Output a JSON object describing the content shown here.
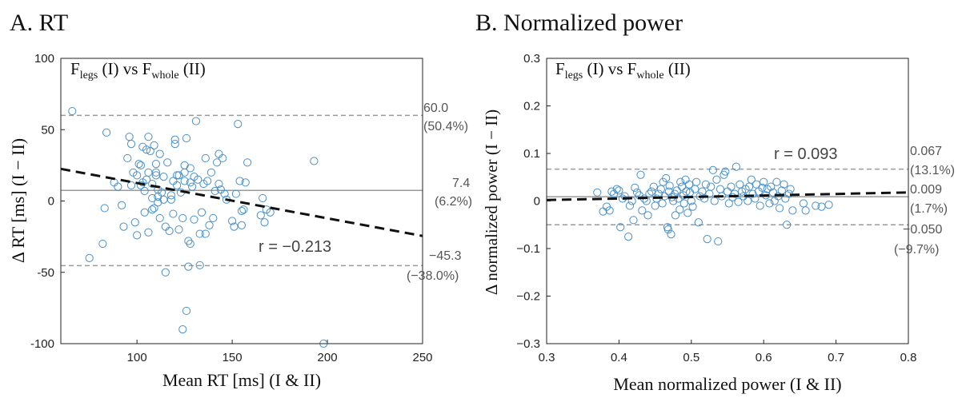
{
  "chart_data": [
    {
      "type": "scatter",
      "panel_title": "A. RT",
      "inset_title": {
        "f1": "F",
        "s1": "legs",
        "m1": " (I) vs F",
        "s2": "whole",
        "m2": " (II)"
      },
      "xlabel": "Mean RT [ms] (I & II)",
      "ylabel": "Δ RT [ms] (I − II)",
      "xlim": [
        60,
        250
      ],
      "ylim": [
        -100,
        100
      ],
      "xticks": [
        100,
        150,
        200,
        250
      ],
      "yticks": [
        -100,
        -50,
        0,
        50,
        100
      ],
      "correlation_label": "r = −0.213",
      "mean_line": {
        "value": 7.4,
        "label": "7.4",
        "pct": "(6.2%)"
      },
      "upper_loa": {
        "value": 60.0,
        "label": "60.0",
        "pct": "(50.4%)"
      },
      "lower_loa": {
        "value": -45.3,
        "label": "−45.3",
        "pct": "(−38.0%)"
      },
      "regression": {
        "x": [
          60,
          250
        ],
        "y": [
          22.5,
          -24.5
        ]
      },
      "grid": false,
      "marker_color": "#4a90c8",
      "points": [
        [
          66,
          63
        ],
        [
          75,
          -40
        ],
        [
          83,
          -5
        ],
        [
          82,
          -30
        ],
        [
          84,
          48
        ],
        [
          88,
          13
        ],
        [
          90,
          10
        ],
        [
          92,
          -3
        ],
        [
          93,
          -18
        ],
        [
          95,
          30
        ],
        [
          96,
          45
        ],
        [
          97,
          40
        ],
        [
          97,
          11
        ],
        [
          98,
          20
        ],
        [
          99,
          -15
        ],
        [
          100,
          18
        ],
        [
          101,
          26
        ],
        [
          100,
          -24
        ],
        [
          102,
          25
        ],
        [
          102,
          11
        ],
        [
          103,
          13
        ],
        [
          104,
          7
        ],
        [
          103,
          38
        ],
        [
          104,
          -8
        ],
        [
          105,
          15
        ],
        [
          105,
          36
        ],
        [
          106,
          45
        ],
        [
          106,
          20
        ],
        [
          106,
          -22
        ],
        [
          107,
          35
        ],
        [
          108,
          2
        ],
        [
          108,
          -6
        ],
        [
          108,
          12
        ],
        [
          109,
          39
        ],
        [
          109,
          -5
        ],
        [
          110,
          26
        ],
        [
          110,
          20
        ],
        [
          110,
          18
        ],
        [
          111,
          8
        ],
        [
          111,
          -1
        ],
        [
          111,
          3
        ],
        [
          112,
          33
        ],
        [
          112,
          -12
        ],
        [
          113,
          6
        ],
        [
          114,
          1
        ],
        [
          114,
          17
        ],
        [
          115,
          -18
        ],
        [
          115,
          -50
        ],
        [
          116,
          27
        ],
        [
          117,
          -21
        ],
        [
          118,
          1
        ],
        [
          118,
          4
        ],
        [
          119,
          14
        ],
        [
          119,
          -9
        ],
        [
          120,
          40
        ],
        [
          120,
          43
        ],
        [
          121,
          11
        ],
        [
          121,
          18
        ],
        [
          122,
          -20
        ],
        [
          122,
          18
        ],
        [
          123,
          6
        ],
        [
          124,
          -12
        ],
        [
          124,
          -90
        ],
        [
          125,
          25
        ],
        [
          125,
          20
        ],
        [
          125,
          14
        ],
        [
          126,
          -77
        ],
        [
          126,
          44
        ],
        [
          127,
          -46
        ],
        [
          127,
          -28
        ],
        [
          128,
          -30
        ],
        [
          128,
          23
        ],
        [
          128,
          13
        ],
        [
          129,
          10
        ],
        [
          130,
          17
        ],
        [
          130,
          -13
        ],
        [
          131,
          56
        ],
        [
          132,
          15
        ],
        [
          133,
          -23
        ],
        [
          133,
          -45
        ],
        [
          134,
          -8
        ],
        [
          135,
          12
        ],
        [
          136,
          30
        ],
        [
          136,
          -23
        ],
        [
          137,
          14
        ],
        [
          138,
          -17
        ],
        [
          139,
          20
        ],
        [
          140,
          -12
        ],
        [
          141,
          7
        ],
        [
          142,
          27
        ],
        [
          143,
          12
        ],
        [
          143,
          33
        ],
        [
          144,
          8
        ],
        [
          145,
          30
        ],
        [
          146,
          5
        ],
        [
          147,
          1
        ],
        [
          150,
          -14
        ],
        [
          151,
          -18
        ],
        [
          152,
          5
        ],
        [
          153,
          54
        ],
        [
          154,
          14
        ],
        [
          155,
          -17
        ],
        [
          155,
          -7
        ],
        [
          156,
          -6
        ],
        [
          157,
          13
        ],
        [
          158,
          27
        ],
        [
          165,
          -10
        ],
        [
          166,
          2
        ],
        [
          167,
          -15
        ],
        [
          168,
          -6
        ],
        [
          170,
          -8
        ],
        [
          193,
          28
        ],
        [
          198,
          -100
        ]
      ]
    },
    {
      "type": "scatter",
      "panel_title": "B. Normalized power",
      "inset_title": {
        "f1": "F",
        "s1": "legs",
        "m1": " (I) vs F",
        "s2": "whole",
        "m2": " (II)"
      },
      "xlabel": "Mean normalized power (I & II)",
      "ylabel": "Δ normalized power (I − II)",
      "xlim": [
        0.3,
        0.8
      ],
      "ylim": [
        -0.3,
        0.3
      ],
      "xticks": [
        "0.3",
        "0.4",
        "0.5",
        "0.6",
        "0.7",
        "0.8"
      ],
      "yticks": [
        "−0.3",
        "−0.2",
        "−0.1",
        "0",
        "0.1",
        "0.2",
        "0.3"
      ],
      "xtick_values": [
        0.3,
        0.4,
        0.5,
        0.6,
        0.7,
        0.8
      ],
      "ytick_values": [
        -0.3,
        -0.2,
        -0.1,
        0,
        0.1,
        0.2,
        0.3
      ],
      "correlation_label": "r = 0.093",
      "mean_line": {
        "value": 0.009,
        "label": "0.009",
        "pct": "(1.7%)"
      },
      "upper_loa": {
        "value": 0.067,
        "label": "0.067",
        "pct": "(13.1%)"
      },
      "lower_loa": {
        "value": -0.05,
        "label": "−0.050",
        "pct": "(−9.7%)"
      },
      "regression": {
        "x": [
          0.3,
          0.8
        ],
        "y": [
          0.002,
          0.018
        ]
      },
      "grid": false,
      "marker_color": "#4a90c8",
      "points": [
        [
          0.37,
          0.018
        ],
        [
          0.378,
          -0.022
        ],
        [
          0.383,
          -0.012
        ],
        [
          0.387,
          -0.02
        ],
        [
          0.39,
          0.02
        ],
        [
          0.393,
          0.015
        ],
        [
          0.397,
          0.025
        ],
        [
          0.4,
          0.022
        ],
        [
          0.402,
          -0.055
        ],
        [
          0.405,
          0.005
        ],
        [
          0.408,
          0.01
        ],
        [
          0.413,
          -0.075
        ],
        [
          0.415,
          -0.01
        ],
        [
          0.418,
          0.0
        ],
        [
          0.42,
          -0.04
        ],
        [
          0.422,
          0.028
        ],
        [
          0.425,
          0.018
        ],
        [
          0.428,
          0.012
        ],
        [
          0.43,
          0.055
        ],
        [
          0.432,
          -0.02
        ],
        [
          0.435,
          0.005
        ],
        [
          0.438,
          0.0
        ],
        [
          0.44,
          -0.03
        ],
        [
          0.442,
          0.015
        ],
        [
          0.445,
          0.02
        ],
        [
          0.448,
          0.03
        ],
        [
          0.45,
          -0.01
        ],
        [
          0.452,
          0.005
        ],
        [
          0.455,
          0.015
        ],
        [
          0.458,
          0.025
        ],
        [
          0.46,
          -0.005
        ],
        [
          0.461,
          0.04
        ],
        [
          0.463,
          0.01
        ],
        [
          0.465,
          0.048
        ],
        [
          0.467,
          -0.055
        ],
        [
          0.468,
          -0.06
        ],
        [
          0.469,
          0.02
        ],
        [
          0.47,
          0.032
        ],
        [
          0.472,
          -0.07
        ],
        [
          0.473,
          0.008
        ],
        [
          0.475,
          0.0
        ],
        [
          0.477,
          0.015
        ],
        [
          0.478,
          -0.03
        ],
        [
          0.48,
          0.022
        ],
        [
          0.482,
          0.005
        ],
        [
          0.484,
          -0.018
        ],
        [
          0.485,
          0.04
        ],
        [
          0.487,
          0.03
        ],
        [
          0.489,
          0.012
        ],
        [
          0.49,
          -0.005
        ],
        [
          0.492,
          0.045
        ],
        [
          0.493,
          0.02
        ],
        [
          0.495,
          -0.025
        ],
        [
          0.497,
          0.035
        ],
        [
          0.498,
          0.018
        ],
        [
          0.5,
          0.0
        ],
        [
          0.502,
          -0.012
        ],
        [
          0.505,
          0.025
        ],
        [
          0.507,
          0.04
        ],
        [
          0.51,
          -0.045
        ],
        [
          0.512,
          0.01
        ],
        [
          0.515,
          0.02
        ],
        [
          0.518,
          0.005
        ],
        [
          0.52,
          0.035
        ],
        [
          0.522,
          -0.08
        ],
        [
          0.525,
          0.015
        ],
        [
          0.527,
          0.03
        ],
        [
          0.53,
          0.065
        ],
        [
          0.532,
          0.0
        ],
        [
          0.535,
          0.045
        ],
        [
          0.537,
          -0.085
        ],
        [
          0.54,
          0.025
        ],
        [
          0.542,
          0.01
        ],
        [
          0.545,
          0.055
        ],
        [
          0.547,
          0.062
        ],
        [
          0.55,
          0.02
        ],
        [
          0.552,
          -0.005
        ],
        [
          0.555,
          0.03
        ],
        [
          0.557,
          0.008
        ],
        [
          0.56,
          0.015
        ],
        [
          0.562,
          0.072
        ],
        [
          0.565,
          -0.002
        ],
        [
          0.567,
          0.035
        ],
        [
          0.57,
          0.02
        ],
        [
          0.572,
          0.01
        ],
        [
          0.575,
          0.025
        ],
        [
          0.578,
          0.0
        ],
        [
          0.58,
          0.03
        ],
        [
          0.583,
          0.045
        ],
        [
          0.585,
          0.015
        ],
        [
          0.588,
          0.005
        ],
        [
          0.59,
          0.035
        ],
        [
          0.593,
          0.02
        ],
        [
          0.595,
          -0.01
        ],
        [
          0.598,
          0.028
        ],
        [
          0.6,
          0.04
        ],
        [
          0.603,
          0.012
        ],
        [
          0.605,
          0.025
        ],
        [
          0.608,
          -0.005
        ],
        [
          0.61,
          0.03
        ],
        [
          0.613,
          0.018
        ],
        [
          0.615,
          0.0
        ],
        [
          0.618,
          0.04
        ],
        [
          0.62,
          0.01
        ],
        [
          0.622,
          -0.015
        ],
        [
          0.625,
          0.022
        ],
        [
          0.628,
          0.035
        ],
        [
          0.63,
          0.005
        ],
        [
          0.632,
          -0.05
        ],
        [
          0.635,
          0.015
        ],
        [
          0.637,
          0.025
        ],
        [
          0.64,
          -0.02
        ],
        [
          0.655,
          -0.005
        ],
        [
          0.658,
          -0.02
        ],
        [
          0.672,
          -0.01
        ],
        [
          0.68,
          -0.012
        ],
        [
          0.69,
          -0.008
        ]
      ]
    }
  ]
}
